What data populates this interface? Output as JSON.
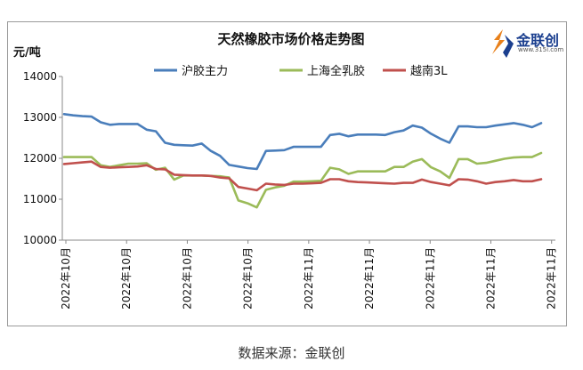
{
  "source_label": "数据来源：金联创",
  "logo": {
    "name": "金联创",
    "url": "www.315i.com"
  },
  "chart_data": {
    "type": "line",
    "title": "天然橡胶市场价格走势图",
    "ylabel": "元/吨",
    "xlabel": "",
    "ylim": [
      10000,
      14000
    ],
    "yticks": [
      10000,
      11000,
      12000,
      13000,
      14000
    ],
    "grid": false,
    "legend_position": "top",
    "xtick_labels": [
      "2022年10月",
      "2022年10月",
      "2022年10月",
      "2022年10月",
      "2022年11月",
      "2022年11月",
      "2022年11月",
      "2022年11月",
      "2022年11月"
    ],
    "series": [
      {
        "name": "沪胶主力",
        "color": "#4a7ebb",
        "values": [
          13080,
          13050,
          13030,
          13020,
          12880,
          12820,
          12840,
          12840,
          12840,
          12700,
          12660,
          12380,
          12330,
          12320,
          12310,
          12360,
          12180,
          12060,
          11840,
          11800,
          11760,
          11740,
          12180,
          12190,
          12200,
          12280,
          12280,
          12280,
          12280,
          12570,
          12600,
          12540,
          12580,
          12580,
          12580,
          12570,
          12640,
          12680,
          12800,
          12750,
          12600,
          12480,
          12380,
          12780,
          12780,
          12760,
          12760,
          12800,
          12830,
          12860,
          12820,
          12760,
          12860
        ]
      },
      {
        "name": "上海全乳胶",
        "color": "#9bbb59",
        "values": [
          12030,
          12030,
          12030,
          12030,
          11830,
          11790,
          11830,
          11870,
          11870,
          11880,
          11720,
          11770,
          11480,
          11580,
          11580,
          11580,
          11570,
          11560,
          11530,
          10970,
          10900,
          10800,
          11230,
          11290,
          11330,
          11430,
          11430,
          11440,
          11450,
          11770,
          11730,
          11620,
          11680,
          11680,
          11680,
          11680,
          11790,
          11790,
          11920,
          11980,
          11780,
          11680,
          11520,
          11980,
          11980,
          11870,
          11890,
          11940,
          11990,
          12020,
          12030,
          12030,
          12130
        ]
      },
      {
        "name": "越南3L",
        "color": "#c0504d",
        "values": [
          11860,
          11880,
          11900,
          11920,
          11790,
          11770,
          11780,
          11790,
          11800,
          11830,
          11740,
          11730,
          11600,
          11590,
          11580,
          11580,
          11570,
          11530,
          11510,
          11300,
          11260,
          11220,
          11380,
          11360,
          11350,
          11380,
          11380,
          11390,
          11400,
          11490,
          11490,
          11440,
          11420,
          11410,
          11400,
          11390,
          11380,
          11400,
          11400,
          11480,
          11420,
          11380,
          11340,
          11490,
          11480,
          11440,
          11380,
          11420,
          11440,
          11470,
          11440,
          11440,
          11490
        ]
      }
    ]
  }
}
